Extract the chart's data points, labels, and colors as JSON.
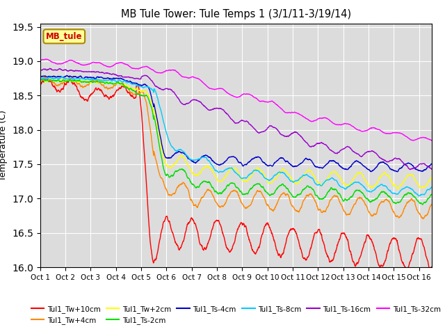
{
  "title": "MB Tule Tower: Tule Temps 1 (3/1/11-3/19/14)",
  "ylabel": "Temperature (C)",
  "ylim": [
    16.0,
    19.55
  ],
  "yticks": [
    16.0,
    16.5,
    17.0,
    17.5,
    18.0,
    18.5,
    19.0,
    19.5
  ],
  "xlim": [
    0,
    15.5
  ],
  "xtick_labels": [
    "Oct 1",
    "Oct 2",
    "Oct 3",
    "Oct 4",
    "Oct 5",
    "Oct 6",
    "Oct 7",
    "Oct 8",
    "Oct 9",
    "Oct 10",
    "Oct 11",
    "Oct 12",
    "Oct 13",
    "Oct 14",
    "Oct 15",
    "Oct 16"
  ],
  "series_order": [
    "Tul1_Tw+10cm",
    "Tul1_Tw+4cm",
    "Tul1_Tw+2cm",
    "Tul1_Ts-2cm",
    "Tul1_Ts-4cm",
    "Tul1_Ts-8cm",
    "Tul1_Ts-16cm",
    "Tul1_Ts-32cm"
  ],
  "series": {
    "Tul1_Tw+10cm": {
      "color": "#FF0000",
      "lw": 1.0
    },
    "Tul1_Tw+4cm": {
      "color": "#FF8800",
      "lw": 1.0
    },
    "Tul1_Tw+2cm": {
      "color": "#FFFF00",
      "lw": 1.0
    },
    "Tul1_Ts-2cm": {
      "color": "#00DD00",
      "lw": 1.0
    },
    "Tul1_Ts-4cm": {
      "color": "#0000CC",
      "lw": 1.0
    },
    "Tul1_Ts-8cm": {
      "color": "#00CCFF",
      "lw": 1.0
    },
    "Tul1_Ts-16cm": {
      "color": "#9900CC",
      "lw": 1.0
    },
    "Tul1_Ts-32cm": {
      "color": "#FF00FF",
      "lw": 1.0
    }
  },
  "legend_box": {
    "label": "MB_tule",
    "facecolor": "#FFFF99",
    "edgecolor": "#AA8800",
    "text_color": "#CC0000"
  },
  "plot_bg": "#DCDCDC",
  "fig_bg": "#FFFFFF"
}
